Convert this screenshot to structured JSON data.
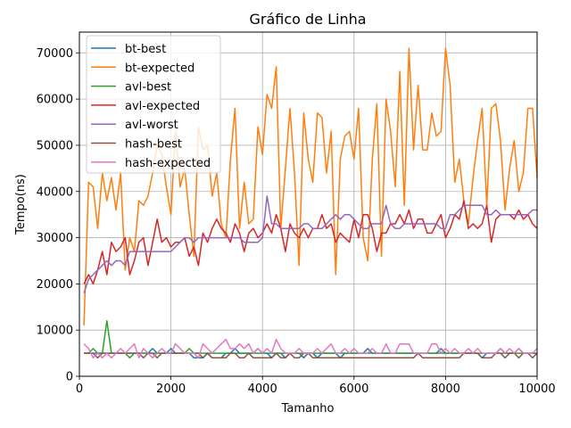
{
  "chart_data": {
    "type": "line",
    "title": "Gráfico de Linha",
    "xlabel": "Tamanho",
    "ylabel": "Tempo(ns)",
    "xlim": [
      0,
      10000
    ],
    "ylim": [
      0,
      74500
    ],
    "xticks": [
      0,
      2000,
      4000,
      6000,
      8000,
      10000
    ],
    "yticks": [
      0,
      10000,
      20000,
      30000,
      40000,
      50000,
      60000,
      70000
    ],
    "grid": true,
    "legend_position": "upper-left",
    "x": [
      100,
      200,
      300,
      400,
      500,
      600,
      700,
      800,
      900,
      1000,
      1100,
      1200,
      1300,
      1400,
      1500,
      1600,
      1700,
      1800,
      1900,
      2000,
      2100,
      2200,
      2300,
      2400,
      2500,
      2600,
      2700,
      2800,
      2900,
      3000,
      3100,
      3200,
      3300,
      3400,
      3500,
      3600,
      3700,
      3800,
      3900,
      4000,
      4100,
      4200,
      4300,
      4400,
      4500,
      4600,
      4700,
      4800,
      4900,
      5000,
      5100,
      5200,
      5300,
      5400,
      5500,
      5600,
      5700,
      5800,
      5900,
      6000,
      6100,
      6200,
      6300,
      6400,
      6500,
      6600,
      6700,
      6800,
      6900,
      7000,
      7100,
      7200,
      7300,
      7400,
      7500,
      7600,
      7700,
      7800,
      7900,
      8000,
      8100,
      8200,
      8300,
      8400,
      8500,
      8600,
      8700,
      8800,
      8900,
      9000,
      9100,
      9200,
      9300,
      9400,
      9500,
      9600,
      9700,
      9800,
      9900,
      10000
    ],
    "series": [
      {
        "name": "bt-best",
        "color": "#1f77b4",
        "values": [
          5000,
          5000,
          5000,
          5000,
          5000,
          5000,
          5000,
          5000,
          5000,
          5000,
          5000,
          5000,
          5000,
          5000,
          5000,
          6000,
          5000,
          5000,
          5000,
          6000,
          5000,
          5000,
          5000,
          5000,
          4000,
          4000,
          4000,
          5000,
          4000,
          4000,
          4000,
          5000,
          5000,
          6000,
          5000,
          5000,
          5000,
          5000,
          6000,
          5000,
          5000,
          4000,
          5000,
          5000,
          4000,
          5000,
          5000,
          5000,
          4000,
          5000,
          5000,
          4000,
          5000,
          5000,
          5000,
          5000,
          4000,
          5000,
          5000,
          5000,
          5000,
          5000,
          6000,
          5000,
          5000,
          5000,
          5000,
          5000,
          5000,
          5000,
          5000,
          5000,
          5000,
          5000,
          5000,
          5000,
          5000,
          5000,
          6000,
          5000,
          5000,
          5000,
          5000,
          5000,
          5000,
          5000,
          5000,
          4000,
          5000,
          5000,
          5000,
          6000,
          5000,
          5000,
          5000,
          6000,
          5000,
          5000,
          5000,
          5000
        ]
      },
      {
        "name": "bt-expected",
        "color": "#ff7f0e",
        "values": [
          11000,
          42000,
          41000,
          32000,
          44000,
          38000,
          43000,
          36000,
          44000,
          23000,
          30000,
          27000,
          38000,
          37000,
          39000,
          44000,
          50000,
          48000,
          41000,
          35000,
          53000,
          41000,
          45000,
          35000,
          26000,
          54000,
          49000,
          50000,
          39000,
          44000,
          33000,
          30000,
          47000,
          58000,
          32000,
          42000,
          33000,
          34000,
          54000,
          48000,
          61000,
          58000,
          67000,
          32000,
          45000,
          58000,
          44000,
          24000,
          57000,
          47000,
          42000,
          57000,
          56000,
          44000,
          53000,
          22000,
          47000,
          52000,
          53000,
          47000,
          58000,
          30000,
          25000,
          47000,
          59000,
          26000,
          60000,
          53000,
          41000,
          66000,
          37000,
          71000,
          49000,
          63000,
          49000,
          49000,
          57000,
          52000,
          53000,
          71000,
          63000,
          42000,
          47000,
          38000,
          33000,
          43000,
          51000,
          58000,
          37000,
          58000,
          59000,
          51000,
          36000,
          45000,
          51000,
          40000,
          44000,
          58000,
          58000,
          43000
        ]
      },
      {
        "name": "avl-best",
        "color": "#2ca02c",
        "values": [
          5000,
          5000,
          6000,
          5000,
          5000,
          12000,
          5000,
          5000,
          5000,
          5000,
          4000,
          5000,
          5000,
          5000,
          5000,
          5000,
          5000,
          5000,
          5000,
          5000,
          5000,
          5000,
          5000,
          6000,
          5000,
          5000,
          5000,
          5000,
          5000,
          5000,
          5000,
          5000,
          5000,
          5000,
          5000,
          5000,
          5000,
          5000,
          5000,
          5000,
          5000,
          5000,
          5000,
          5000,
          5000,
          5000,
          5000,
          5000,
          5000,
          5000,
          5000,
          5000,
          5000,
          5000,
          5000,
          5000,
          5000,
          5000,
          5000,
          5000,
          5000,
          5000,
          5000,
          5000,
          5000,
          5000,
          5000,
          5000,
          5000,
          5000,
          5000,
          5000,
          5000,
          5000,
          5000,
          5000,
          5000,
          5000,
          5000,
          5000,
          5000,
          5000,
          5000,
          5000,
          5000,
          5000,
          5000,
          5000,
          5000,
          5000,
          5000,
          5000,
          5000,
          5000,
          5000,
          5000,
          5000,
          5000,
          5000,
          5000
        ]
      },
      {
        "name": "avl-expected",
        "color": "#d62728",
        "values": [
          20000,
          22000,
          20000,
          23000,
          27000,
          22000,
          29000,
          27000,
          28000,
          30000,
          22000,
          25000,
          29000,
          30000,
          24000,
          29000,
          34000,
          29000,
          30000,
          28000,
          29000,
          29000,
          30000,
          26000,
          28000,
          24000,
          31000,
          29000,
          32000,
          34000,
          32000,
          31000,
          29000,
          33000,
          31000,
          27000,
          31000,
          32000,
          30000,
          31000,
          33000,
          31000,
          35000,
          32000,
          27000,
          33000,
          31000,
          30000,
          32000,
          30000,
          32000,
          32000,
          35000,
          32000,
          33000,
          29000,
          31000,
          30000,
          29000,
          34000,
          30000,
          35000,
          35000,
          32000,
          27000,
          31000,
          31000,
          33000,
          33000,
          35000,
          33000,
          36000,
          32000,
          34000,
          34000,
          31000,
          31000,
          33000,
          35000,
          30000,
          32000,
          35000,
          34000,
          38000,
          32000,
          33000,
          32000,
          33000,
          37000,
          29000,
          34000,
          35000,
          35000,
          35000,
          34000,
          36000,
          34000,
          35000,
          33000,
          32000
        ]
      },
      {
        "name": "avl-worst",
        "color": "#9467bd",
        "values": [
          18000,
          21000,
          22000,
          23000,
          24000,
          25000,
          24000,
          25000,
          25000,
          24000,
          27000,
          27000,
          27000,
          27000,
          27000,
          27000,
          27000,
          27000,
          27000,
          27000,
          28000,
          29000,
          30000,
          30000,
          29000,
          30000,
          30000,
          30000,
          30000,
          30000,
          30000,
          30000,
          30000,
          30000,
          30000,
          29000,
          29000,
          29000,
          29000,
          30000,
          39000,
          33000,
          33000,
          32000,
          32000,
          32000,
          32000,
          32000,
          33000,
          33000,
          32000,
          32000,
          32000,
          33000,
          34000,
          35000,
          34000,
          35000,
          35000,
          34000,
          33000,
          32000,
          32000,
          33000,
          33000,
          33000,
          37000,
          33000,
          32000,
          32000,
          33000,
          33000,
          33000,
          33000,
          33000,
          33000,
          33000,
          33000,
          32000,
          32000,
          35000,
          35000,
          36000,
          37000,
          37000,
          37000,
          37000,
          37000,
          35000,
          35000,
          36000,
          35000,
          35000,
          35000,
          35000,
          35000,
          35000,
          35000,
          36000,
          36000
        ]
      },
      {
        "name": "hash-best",
        "color": "#8c564b",
        "values": [
          5000,
          5000,
          5000,
          4000,
          5000,
          5000,
          5000,
          5000,
          5000,
          5000,
          5000,
          5000,
          5000,
          4000,
          5000,
          5000,
          4000,
          5000,
          5000,
          5000,
          5000,
          5000,
          5000,
          5000,
          5000,
          5000,
          4000,
          5000,
          4000,
          4000,
          4000,
          4000,
          5000,
          5000,
          4000,
          4000,
          5000,
          4000,
          4000,
          4000,
          4000,
          4000,
          5000,
          4000,
          4000,
          5000,
          4000,
          4000,
          5000,
          5000,
          4000,
          4000,
          4000,
          4000,
          4000,
          4000,
          4000,
          4000,
          4000,
          4000,
          4000,
          4000,
          4000,
          4000,
          4000,
          4000,
          4000,
          4000,
          4000,
          4000,
          4000,
          4000,
          4000,
          5000,
          4000,
          4000,
          4000,
          4000,
          4000,
          4000,
          4000,
          4000,
          4000,
          5000,
          5000,
          5000,
          5000,
          4000,
          4000,
          4000,
          5000,
          5000,
          4000,
          5000,
          5000,
          4000,
          5000,
          5000,
          4000,
          5000
        ]
      },
      {
        "name": "hash-expected",
        "color": "#e377c2",
        "values": [
          7000,
          6000,
          4000,
          5000,
          4000,
          5000,
          4000,
          5000,
          6000,
          5000,
          6000,
          7000,
          4000,
          6000,
          5000,
          4000,
          5000,
          6000,
          5000,
          5000,
          7000,
          6000,
          5000,
          5000,
          5000,
          4000,
          7000,
          6000,
          5000,
          6000,
          7000,
          8000,
          6000,
          6000,
          7000,
          6000,
          7000,
          5000,
          6000,
          5000,
          6000,
          5000,
          8000,
          6000,
          5000,
          5000,
          5000,
          6000,
          5000,
          5000,
          5000,
          6000,
          5000,
          6000,
          7000,
          5000,
          5000,
          6000,
          5000,
          6000,
          5000,
          5000,
          5000,
          6000,
          5000,
          5000,
          7000,
          5000,
          5000,
          7000,
          7000,
          7000,
          5000,
          5000,
          5000,
          5000,
          7000,
          7000,
          5000,
          6000,
          5000,
          6000,
          5000,
          5000,
          6000,
          5000,
          6000,
          5000,
          5000,
          5000,
          5000,
          6000,
          5000,
          6000,
          5000,
          6000,
          5000,
          5000,
          5000,
          6000
        ]
      }
    ]
  }
}
